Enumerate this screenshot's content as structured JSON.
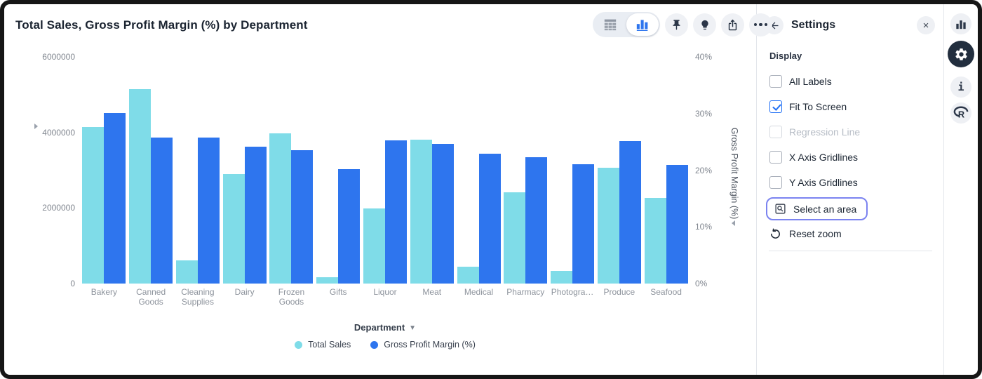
{
  "header": {
    "title": "Total Sales, Gross Profit Margin (%) by Department",
    "toolbar_icons": [
      "table-view-toggle",
      "chart-view-toggle",
      "pin",
      "lightbulb",
      "share",
      "more-options"
    ]
  },
  "chart_data": {
    "type": "bar",
    "title": "Total Sales, Gross Profit Margin (%) by Department",
    "categories": [
      "Bakery",
      "Canned Goods",
      "Cleaning Supplies",
      "Dairy",
      "Frozen Goods",
      "Gifts",
      "Liquor",
      "Meat",
      "Medical",
      "Pharmacy",
      "Photogra…",
      "Produce",
      "Seafood"
    ],
    "series": [
      {
        "name": "Total Sales",
        "axis": "left",
        "color": "#7fdce8",
        "values": [
          4150000,
          5150000,
          620000,
          2900000,
          3970000,
          170000,
          1980000,
          3800000,
          440000,
          2420000,
          330000,
          3060000,
          2260000
        ]
      },
      {
        "name": "Gross Profit Margin (%)",
        "axis": "right",
        "color": "#2e75ee",
        "values": [
          30.1,
          25.8,
          25.7,
          24.1,
          23.5,
          20.2,
          25.3,
          24.7,
          22.9,
          22.3,
          21.1,
          25.2,
          20.9
        ]
      }
    ],
    "left_axis": {
      "label": "Total Sales",
      "ticks": [
        "0",
        "2000000",
        "4000000",
        "6000000"
      ],
      "range": [
        0,
        6000000
      ]
    },
    "right_axis": {
      "label": "Gross Profit Margin (%)",
      "ticks": [
        "0%",
        "10%",
        "20%",
        "30%",
        "40%"
      ],
      "range": [
        0,
        40
      ]
    },
    "x_axis": {
      "label": "Department"
    },
    "legend_position": "bottom",
    "grid": false
  },
  "settings_panel": {
    "title": "Settings",
    "section": "Display",
    "checkboxes": [
      {
        "label": "All Labels",
        "checked": false,
        "disabled": false
      },
      {
        "label": "Fit To Screen",
        "checked": true,
        "disabled": false
      },
      {
        "label": "Regression Line",
        "checked": false,
        "disabled": true
      },
      {
        "label": "X Axis Gridlines",
        "checked": false,
        "disabled": false
      },
      {
        "label": "Y Axis Gridlines",
        "checked": false,
        "disabled": false
      }
    ],
    "select_area_label": "Select an area",
    "reset_zoom_label": "Reset zoom",
    "close_label": "×"
  },
  "right_rail": {
    "icons": [
      "chart",
      "settings",
      "info",
      "r-logo"
    ]
  },
  "colors": {
    "accent_blue": "#2e75ee",
    "bar_cyan": "#7fdce8",
    "dark_navy": "#2b3648",
    "select_border": "#7b83f0"
  }
}
